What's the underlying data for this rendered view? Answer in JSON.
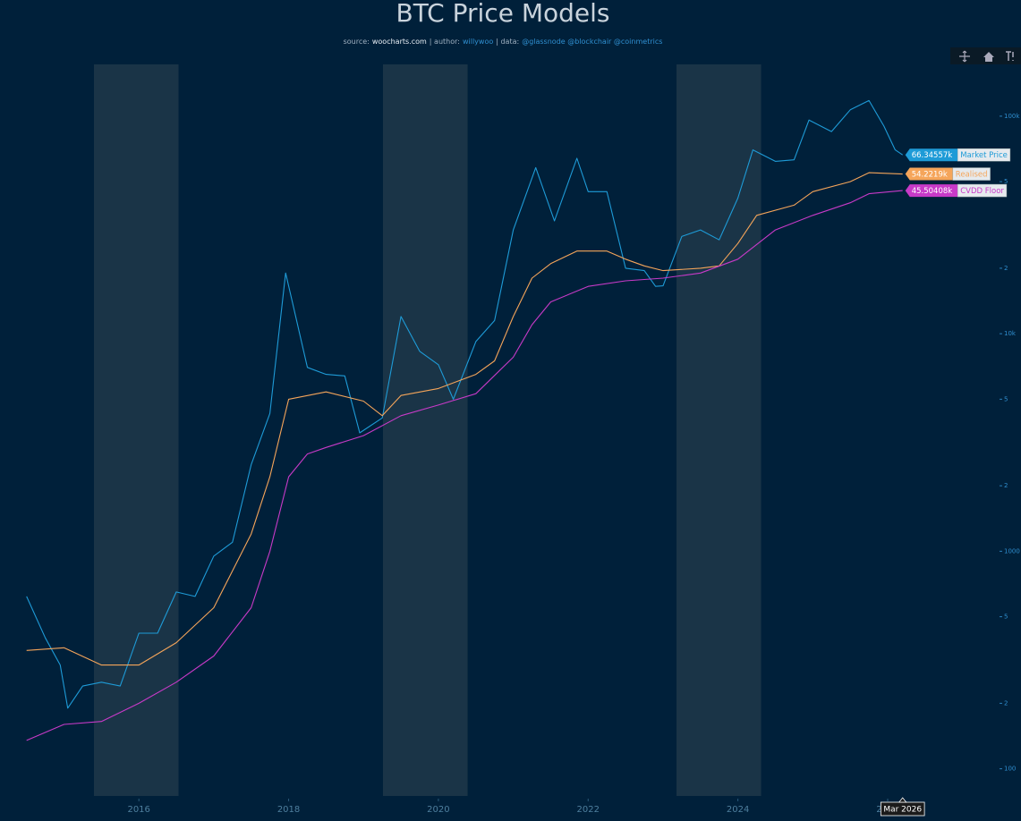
{
  "chart_data": {
    "type": "line",
    "title": "BTC Price Models",
    "subtitle": [
      "source:",
      "woocharts.com",
      "| author:",
      "willywoo",
      "| data:",
      "@glassnode @blockchair @coinmetrics"
    ],
    "log_y": true,
    "xlim": [
      2014.48,
      2027.47
    ],
    "xticks": [
      2016,
      2018,
      2020,
      2022,
      2024,
      2026
    ],
    "ylim": [
      75,
      173000
    ],
    "yticks": [
      {
        "value": 100000,
        "label": "100k"
      },
      {
        "value": 50000,
        "label": "5"
      },
      {
        "value": 20000,
        "label": "2"
      },
      {
        "value": 10000,
        "label": "10k"
      },
      {
        "value": 5000,
        "label": "5"
      },
      {
        "value": 2000,
        "label": "2"
      },
      1000,
      {
        "value": 500,
        "label": "5"
      },
      {
        "value": 200,
        "label": "2"
      },
      100
    ],
    "shaded_periods": [
      [
        2015.4,
        2016.53
      ],
      [
        2019.26,
        2020.39
      ],
      [
        2023.18,
        2024.31
      ]
    ],
    "hover_label": "Mar 2026",
    "series": [
      {
        "name": "Market Price",
        "color": "#1e9bd7",
        "x": [
          2014.5,
          2014.75,
          2014.95,
          2015.05,
          2015.25,
          2015.5,
          2015.75,
          2016.0,
          2016.25,
          2016.5,
          2016.75,
          2017.0,
          2017.25,
          2017.5,
          2017.75,
          2017.96,
          2018.05,
          2018.25,
          2018.5,
          2018.75,
          2018.95,
          2019.25,
          2019.5,
          2019.75,
          2020.0,
          2020.2,
          2020.5,
          2020.75,
          2021.0,
          2021.3,
          2021.55,
          2021.85,
          2022.0,
          2022.25,
          2022.5,
          2022.75,
          2022.9,
          2023.0,
          2023.25,
          2023.5,
          2023.75,
          2024.0,
          2024.2,
          2024.5,
          2024.75,
          2024.95,
          2025.25,
          2025.5,
          2025.75,
          2025.95,
          2026.1,
          2026.2
        ],
        "values": [
          620,
          400,
          300,
          190,
          240,
          250,
          240,
          420,
          420,
          650,
          620,
          950,
          1100,
          2500,
          4300,
          19000,
          14000,
          7000,
          6500,
          6400,
          3500,
          4100,
          12000,
          8300,
          7200,
          5000,
          9200,
          11500,
          30000,
          58000,
          33000,
          64000,
          45000,
          45000,
          20000,
          19500,
          16500,
          16600,
          28000,
          30000,
          27000,
          42000,
          70000,
          62000,
          63000,
          96000,
          85000,
          107000,
          118000,
          90000,
          70000,
          66345.57
        ],
        "value_labels": [
          null,
          null,
          null,
          null,
          null,
          null,
          null,
          null,
          null,
          null,
          null,
          null,
          null,
          null,
          null,
          null,
          null,
          null,
          null,
          null,
          null,
          null,
          null,
          null,
          null,
          null,
          null,
          null,
          null,
          null,
          null,
          null,
          null,
          null,
          null,
          null,
          null,
          null,
          null,
          null,
          null,
          null,
          null,
          null,
          null,
          null,
          null,
          null,
          null,
          null,
          null,
          "66.34557k"
        ]
      },
      {
        "name": "Realised",
        "color": "#f5a55a",
        "x": [
          2014.5,
          2015.0,
          2015.5,
          2016.0,
          2016.5,
          2017.0,
          2017.5,
          2017.75,
          2018.0,
          2018.5,
          2019.0,
          2019.25,
          2019.5,
          2020.0,
          2020.5,
          2020.75,
          2021.0,
          2021.25,
          2021.5,
          2021.85,
          2022.25,
          2022.5,
          2022.75,
          2023.0,
          2023.5,
          2023.75,
          2024.0,
          2024.25,
          2024.75,
          2025.0,
          2025.5,
          2025.75,
          2026.2
        ],
        "values": [
          350,
          360,
          300,
          300,
          380,
          550,
          1200,
          2200,
          5000,
          5400,
          4900,
          4200,
          5200,
          5600,
          6500,
          7500,
          12000,
          18000,
          21000,
          24000,
          24000,
          22000,
          20500,
          19500,
          20000,
          20500,
          26000,
          35000,
          39000,
          45000,
          50000,
          55000,
          54221.9
        ],
        "value_labels": [
          null,
          null,
          null,
          null,
          null,
          null,
          null,
          null,
          null,
          null,
          null,
          null,
          null,
          null,
          null,
          null,
          null,
          null,
          null,
          null,
          null,
          null,
          null,
          null,
          null,
          null,
          null,
          null,
          null,
          null,
          null,
          null,
          "54.2219k"
        ]
      },
      {
        "name": "CVDD Floor",
        "color": "#c83ac8",
        "x": [
          2014.5,
          2015.0,
          2015.5,
          2016.0,
          2016.5,
          2017.0,
          2017.5,
          2017.75,
          2018.0,
          2018.25,
          2018.5,
          2019.0,
          2019.5,
          2020.0,
          2020.5,
          2021.0,
          2021.25,
          2021.5,
          2022.0,
          2022.5,
          2023.0,
          2023.5,
          2024.0,
          2024.5,
          2025.0,
          2025.5,
          2025.75,
          2026.2
        ],
        "values": [
          135,
          160,
          165,
          200,
          250,
          330,
          550,
          1000,
          2200,
          2800,
          3000,
          3400,
          4200,
          4700,
          5300,
          7800,
          11000,
          14000,
          16500,
          17500,
          18000,
          19000,
          22000,
          30000,
          35000,
          40000,
          44000,
          45504.08
        ],
        "value_labels": [
          null,
          null,
          null,
          null,
          null,
          null,
          null,
          null,
          null,
          null,
          null,
          null,
          null,
          null,
          null,
          null,
          null,
          null,
          null,
          null,
          null,
          null,
          null,
          null,
          null,
          null,
          null,
          "45.50408k"
        ]
      }
    ]
  }
}
